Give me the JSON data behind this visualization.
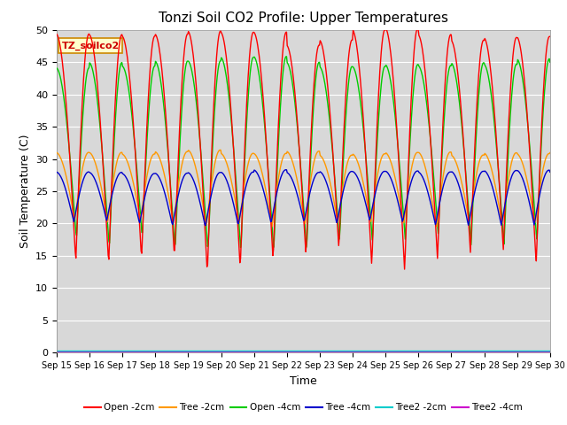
{
  "title": "Tonzi Soil CO2 Profile: Upper Temperatures",
  "xlabel": "Time",
  "ylabel": "Soil Temperature (C)",
  "ylim": [
    0,
    50
  ],
  "yticks": [
    0,
    5,
    10,
    15,
    20,
    25,
    30,
    35,
    40,
    45,
    50
  ],
  "x_labels": [
    "Sep 15",
    "Sep 16",
    "Sep 17",
    "Sep 18",
    "Sep 19",
    "Sep 20",
    "Sep 21",
    "Sep 22",
    "Sep 23",
    "Sep 24",
    "Sep 25",
    "Sep 26",
    "Sep 27",
    "Sep 28",
    "Sep 29",
    "Sep 30"
  ],
  "background_color": "#ffffff",
  "plot_bg_color": "#d8d8d8",
  "legend_entries": [
    "Open -2cm",
    "Tree -2cm",
    "Open -4cm",
    "Tree -4cm",
    "Tree2 -2cm",
    "Tree2 -4cm"
  ],
  "line_colors": [
    "#ff0000",
    "#ff9900",
    "#00cc00",
    "#0000cc",
    "#00cccc",
    "#cc00cc"
  ],
  "annotation_text": "TZ_soilco2",
  "annotation_bg": "#ffffcc",
  "annotation_border": "#cc8800",
  "figsize": [
    6.4,
    4.8
  ],
  "dpi": 100
}
